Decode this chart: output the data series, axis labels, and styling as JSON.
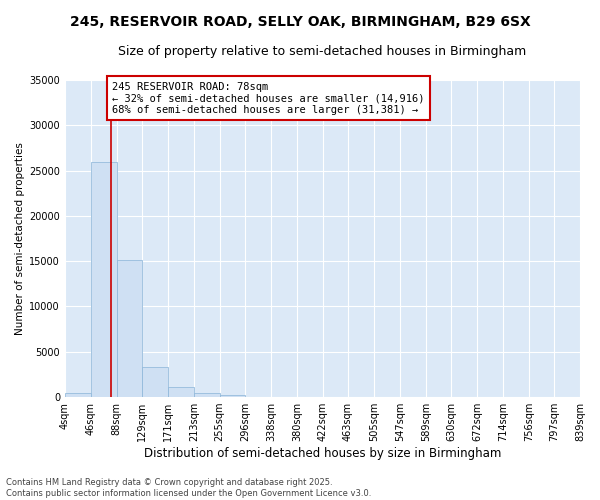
{
  "title1": "245, RESERVOIR ROAD, SELLY OAK, BIRMINGHAM, B29 6SX",
  "title2": "Size of property relative to semi-detached houses in Birmingham",
  "xlabel": "Distribution of semi-detached houses by size in Birmingham",
  "ylabel": "Number of semi-detached properties",
  "property_size": 78,
  "property_label": "245 RESERVOIR ROAD: 78sqm",
  "pct_smaller": 32,
  "pct_larger": 68,
  "n_smaller": 14916,
  "n_larger": 31381,
  "bin_edges": [
    4,
    46,
    88,
    129,
    171,
    213,
    255,
    296,
    338,
    380,
    422,
    463,
    505,
    547,
    589,
    630,
    672,
    714,
    756,
    797,
    839
  ],
  "bin_labels": [
    "4sqm",
    "46sqm",
    "88sqm",
    "129sqm",
    "171sqm",
    "213sqm",
    "255sqm",
    "296sqm",
    "338sqm",
    "380sqm",
    "422sqm",
    "463sqm",
    "505sqm",
    "547sqm",
    "589sqm",
    "630sqm",
    "672sqm",
    "714sqm",
    "756sqm",
    "797sqm",
    "839sqm"
  ],
  "bar_heights": [
    400,
    26000,
    15100,
    3300,
    1100,
    500,
    200,
    50,
    30,
    10,
    5,
    3,
    2,
    1,
    1,
    0,
    0,
    0,
    0,
    0
  ],
  "bar_color": "#cfe0f3",
  "bar_edge_color": "#8ab4d8",
  "vline_color": "#cc0000",
  "box_edge_color": "#cc0000",
  "background_color": "#ffffff",
  "plot_bg_color": "#dce9f7",
  "ylim": [
    0,
    35000
  ],
  "yticks": [
    0,
    5000,
    10000,
    15000,
    20000,
    25000,
    30000,
    35000
  ],
  "grid_color": "#ffffff",
  "annotation_fontsize": 7.5,
  "title1_fontsize": 10,
  "title2_fontsize": 9,
  "tick_fontsize": 7,
  "footer_text": "Contains HM Land Registry data © Crown copyright and database right 2025.\nContains public sector information licensed under the Open Government Licence v3.0."
}
